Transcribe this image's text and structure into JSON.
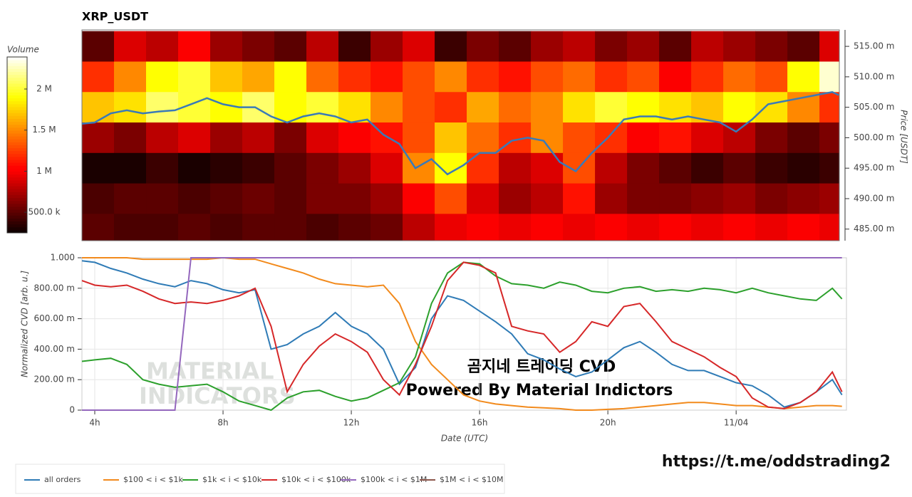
{
  "chart_data": [
    {
      "type": "heatmap",
      "title": "XRP_USDT",
      "y_label": "Price [USDT]",
      "colorbar_title": "Volume",
      "xlim": [
        3.6,
        27.22
      ],
      "ylim": [
        483.1,
        517.7
      ],
      "x_bins": [
        3.6,
        4.6,
        5.6,
        6.6,
        7.6,
        8.6,
        9.6,
        10.6,
        11.6,
        12.6,
        13.6,
        14.6,
        15.6,
        16.6,
        17.6,
        18.6,
        19.6,
        20.6,
        21.6,
        22.6,
        23.6,
        24.6,
        25.6,
        26.6,
        27.22
      ],
      "y_bins": [
        517.5,
        512.5,
        507.5,
        502.5,
        497.5,
        492.5,
        487.5,
        482.5
      ],
      "yticks": [
        {
          "value": 485,
          "label": "485.00 m"
        },
        {
          "value": 490,
          "label": "490.00 m"
        },
        {
          "value": 495,
          "label": "495.00 m"
        },
        {
          "value": 500,
          "label": "500.00 m"
        },
        {
          "value": 505,
          "label": "505.00 m"
        },
        {
          "value": 510,
          "label": "510.00 m"
        },
        {
          "value": 515,
          "label": "515.00 m"
        }
      ],
      "zlim": [
        250000,
        2390000
      ],
      "zticks": [
        {
          "value": 500000,
          "label": "500.0 k"
        },
        {
          "value": 1000000,
          "label": "1 M"
        },
        {
          "value": 1500000,
          "label": "1.5 M"
        },
        {
          "value": 2000000,
          "label": "2 M"
        }
      ],
      "values": [
        [
          500000,
          900000,
          800000,
          1000000,
          700000,
          600000,
          500000,
          800000,
          400000,
          700000,
          900000,
          400000,
          600000,
          500000,
          700000,
          800000,
          600000,
          700000,
          500000,
          800000,
          700000,
          600000,
          500000,
          900000
        ],
        [
          1200000,
          1500000,
          1900000,
          2000000,
          1700000,
          1600000,
          1900000,
          1400000,
          1200000,
          1100000,
          1300000,
          1500000,
          1200000,
          1100000,
          1300000,
          1400000,
          1200000,
          1300000,
          1000000,
          1200000,
          1400000,
          1300000,
          1900000,
          2300000
        ],
        [
          1700000,
          1800000,
          2100000,
          2000000,
          1900000,
          2100000,
          1900000,
          2000000,
          1800000,
          1500000,
          1300000,
          1200000,
          1600000,
          1400000,
          1500000,
          1800000,
          2000000,
          1900000,
          1800000,
          1700000,
          1900000,
          1800000,
          1500000,
          1200000
        ],
        [
          700000,
          600000,
          800000,
          900000,
          700000,
          800000,
          600000,
          900000,
          1000000,
          1100000,
          1300000,
          1700000,
          1400000,
          1200000,
          1500000,
          1300000,
          1200000,
          1000000,
          1100000,
          900000,
          800000,
          600000,
          500000,
          600000
        ],
        [
          300000,
          300000,
          400000,
          300000,
          350000,
          400000,
          500000,
          600000,
          700000,
          900000,
          1500000,
          1900000,
          1200000,
          800000,
          900000,
          1300000,
          800000,
          600000,
          500000,
          400000,
          500000,
          400000,
          350000,
          400000
        ],
        [
          450000,
          500000,
          500000,
          450000,
          500000,
          550000,
          500000,
          600000,
          600000,
          700000,
          1000000,
          1300000,
          900000,
          700000,
          800000,
          1100000,
          700000,
          600000,
          600000,
          650000,
          700000,
          600000,
          650000,
          700000
        ],
        [
          500000,
          450000,
          450000,
          500000,
          450000,
          500000,
          500000,
          450000,
          500000,
          550000,
          800000,
          950000,
          1000000,
          950000,
          1000000,
          950000,
          1000000,
          950000,
          1000000,
          950000,
          1000000,
          950000,
          1000000,
          950000
        ]
      ],
      "line": {
        "color": "#3a7ab8",
        "x": [
          3.6,
          4,
          4.5,
          5,
          5.5,
          6,
          6.5,
          7,
          7.5,
          8,
          8.5,
          9,
          9.5,
          10,
          10.5,
          11,
          11.5,
          12,
          12.5,
          13,
          13.5,
          14,
          14.5,
          15,
          15.5,
          16,
          16.5,
          17,
          17.5,
          18,
          18.5,
          19,
          19.5,
          20,
          20.5,
          21,
          21.5,
          22,
          22.5,
          23,
          23.5,
          24,
          24.5,
          25,
          25.5,
          26,
          26.5,
          27,
          27.2
        ],
        "values": [
          502.3,
          502.5,
          504,
          504.5,
          504,
          504.3,
          504.5,
          505.5,
          506.5,
          505.5,
          505,
          505,
          503.5,
          502.5,
          503.5,
          504,
          503.5,
          502.5,
          503,
          500.5,
          499,
          495,
          496.5,
          494,
          495.5,
          497.5,
          497.5,
          499.5,
          500,
          499.5,
          496,
          494.5,
          497.5,
          500,
          503,
          503.5,
          503.5,
          503,
          503.5,
          503,
          502.5,
          501,
          503,
          505.5,
          506,
          506.5,
          507,
          507.5,
          507
        ]
      }
    },
    {
      "type": "line",
      "x_label": "Date (UTC)",
      "y_label": "Normalized CVD [arb. u.]",
      "grid": true,
      "xlim": [
        3.6,
        27.44
      ],
      "ylim": [
        0,
        1
      ],
      "xticks": [
        {
          "value": 4,
          "label": "4h"
        },
        {
          "value": 8,
          "label": "8h"
        },
        {
          "value": 12,
          "label": "12h"
        },
        {
          "value": 16,
          "label": "16h"
        },
        {
          "value": 20,
          "label": "20h"
        },
        {
          "value": 24,
          "label": "11/04"
        }
      ],
      "yticks": [
        0,
        {
          "value": 0.2,
          "label": "200.00 m"
        },
        {
          "value": 0.4,
          "label": "400.00 m"
        },
        {
          "value": 0.6,
          "label": "600.00 m"
        },
        {
          "value": 0.8,
          "label": "800.00 m"
        },
        {
          "value": 1,
          "label": "1.000"
        }
      ],
      "x": [
        3.6,
        4,
        4.5,
        5,
        5.5,
        6,
        6.5,
        7,
        7.5,
        8,
        8.5,
        9,
        9.5,
        10,
        10.5,
        11,
        11.5,
        12,
        12.5,
        13,
        13.5,
        14,
        14.5,
        15,
        15.5,
        16,
        16.5,
        17,
        17.5,
        18,
        18.5,
        19,
        19.5,
        20,
        20.5,
        21,
        21.5,
        22,
        22.5,
        23,
        23.5,
        24,
        24.5,
        25,
        25.5,
        26,
        26.5,
        27,
        27.3
      ],
      "series": [
        {
          "name": "all orders",
          "color": "#2f7bb6",
          "values": [
            0.98,
            0.97,
            0.93,
            0.9,
            0.86,
            0.83,
            0.81,
            0.85,
            0.83,
            0.79,
            0.77,
            0.79,
            0.4,
            0.43,
            0.5,
            0.55,
            0.64,
            0.55,
            0.5,
            0.4,
            0.17,
            0.28,
            0.6,
            0.75,
            0.72,
            0.65,
            0.58,
            0.5,
            0.37,
            0.33,
            0.27,
            0.22,
            0.25,
            0.33,
            0.41,
            0.45,
            0.38,
            0.3,
            0.26,
            0.26,
            0.22,
            0.18,
            0.16,
            0.1,
            0.02,
            0.05,
            0.12,
            0.2,
            0.1
          ]
        },
        {
          "name": "$100 < i < $1k",
          "color": "#f28a1c",
          "values": [
            1,
            1,
            1,
            1,
            0.99,
            0.99,
            0.99,
            0.99,
            0.99,
            1,
            0.99,
            0.99,
            0.96,
            0.93,
            0.9,
            0.86,
            0.83,
            0.82,
            0.81,
            0.82,
            0.7,
            0.45,
            0.3,
            0.2,
            0.1,
            0.06,
            0.04,
            0.03,
            0.02,
            0.015,
            0.01,
            0,
            0,
            0.005,
            0.01,
            0.02,
            0.03,
            0.04,
            0.05,
            0.05,
            0.04,
            0.03,
            0.03,
            0.02,
            0.01,
            0.02,
            0.03,
            0.03,
            0.025
          ]
        },
        {
          "name": "$1k < i < $10k",
          "color": "#2ca02c",
          "values": [
            0.32,
            0.33,
            0.34,
            0.3,
            0.2,
            0.17,
            0.15,
            0.16,
            0.17,
            0.12,
            0.06,
            0.03,
            0,
            0.08,
            0.12,
            0.13,
            0.09,
            0.06,
            0.08,
            0.13,
            0.18,
            0.35,
            0.7,
            0.9,
            0.97,
            0.96,
            0.88,
            0.83,
            0.82,
            0.8,
            0.84,
            0.82,
            0.78,
            0.77,
            0.8,
            0.81,
            0.78,
            0.79,
            0.78,
            0.8,
            0.79,
            0.77,
            0.8,
            0.77,
            0.75,
            0.73,
            0.72,
            0.8,
            0.73
          ]
        },
        {
          "name": "$10k < i < $100k",
          "color": "#d62728",
          "values": [
            0.85,
            0.82,
            0.81,
            0.82,
            0.78,
            0.73,
            0.7,
            0.71,
            0.7,
            0.72,
            0.75,
            0.8,
            0.55,
            0.12,
            0.3,
            0.42,
            0.5,
            0.45,
            0.38,
            0.2,
            0.1,
            0.3,
            0.55,
            0.85,
            0.97,
            0.95,
            0.9,
            0.55,
            0.52,
            0.5,
            0.38,
            0.45,
            0.58,
            0.55,
            0.68,
            0.7,
            0.58,
            0.45,
            0.4,
            0.35,
            0.28,
            0.22,
            0.08,
            0.02,
            0.01,
            0.05,
            0.12,
            0.25,
            0.12
          ]
        },
        {
          "name": "$100k < i < $1M",
          "color": "#9467bd",
          "values": [
            0,
            0,
            0,
            0,
            0,
            0,
            0,
            1,
            1,
            1,
            1,
            1,
            1,
            1,
            1,
            1,
            1,
            1,
            1,
            1,
            1,
            1,
            1,
            1,
            1,
            1,
            1,
            1,
            1,
            1,
            1,
            1,
            1,
            1,
            1,
            1,
            1,
            1,
            1,
            1,
            1,
            1,
            1,
            1,
            1,
            1,
            1,
            1,
            1
          ]
        },
        {
          "name": "$1M < i < $10M",
          "color": "#8c564b",
          "values": [
            null,
            null,
            null,
            null,
            null,
            null,
            null,
            null,
            null,
            null,
            null,
            null,
            null,
            null,
            null,
            null,
            null,
            null,
            null,
            null,
            null,
            null,
            null,
            null,
            null,
            null,
            null,
            null,
            null,
            null,
            null,
            null,
            null,
            null,
            null,
            null,
            null,
            null,
            null,
            null,
            null,
            null,
            null,
            null,
            null,
            null,
            null,
            null,
            null
          ]
        }
      ]
    }
  ],
  "watermark": [
    "MATERIAL",
    "INDICATORS"
  ],
  "caption": [
    "곰지네 트레이딩 CVD",
    "Powered By Material Indictors"
  ],
  "link": "https://t.me/oddstrading2"
}
